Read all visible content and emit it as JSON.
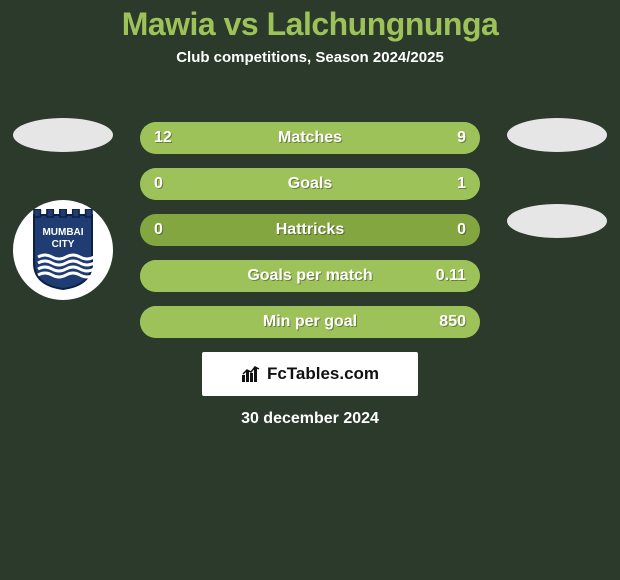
{
  "background_color": "#2b3a2b",
  "title": {
    "text": "Mawia vs Lalchungnunga",
    "font_size": 32,
    "color": "#9ec25a"
  },
  "subtitle": {
    "text": "Club competitions, Season 2024/2025",
    "font_size": 15,
    "color": "#ffffff"
  },
  "bar_style": {
    "track_color": "#83a640",
    "fill_color": "#9ec25a",
    "label_color": "#ffffff",
    "value_color": "#ffffff",
    "font_size": 16,
    "label_font_size": 16
  },
  "bars": [
    {
      "label": "Matches",
      "left_value": "12",
      "right_value": "9",
      "left_pct": 57,
      "right_pct": 43
    },
    {
      "label": "Goals",
      "left_value": "0",
      "right_value": "1",
      "left_pct": 20,
      "right_pct": 80
    },
    {
      "label": "Hattricks",
      "left_value": "0",
      "right_value": "0",
      "left_pct": 0,
      "right_pct": 0
    },
    {
      "label": "Goals per match",
      "left_value": "",
      "right_value": "0.11",
      "left_pct": 0,
      "right_pct": 100
    },
    {
      "label": "Min per goal",
      "left_value": "",
      "right_value": "850",
      "left_pct": 0,
      "right_pct": 100
    }
  ],
  "left_badges": {
    "ellipse_color": "#e6e6e6",
    "has_circle": true,
    "club_logo": {
      "shield_fill": "#1f3c73",
      "battlement_count": 5,
      "stripe_color": "#ffffff",
      "text_color": "#ffffff",
      "line1": "MUMBAI",
      "line2": "CITY"
    }
  },
  "right_badges": {
    "ellipse_colors": [
      "#e6e6e6",
      "#e6e6e6"
    ]
  },
  "watermark": {
    "text": "FcTables.com",
    "font_size": 17,
    "icon_color": "#111111"
  },
  "date": {
    "text": "30 december 2024",
    "font_size": 16,
    "color": "#ffffff"
  }
}
